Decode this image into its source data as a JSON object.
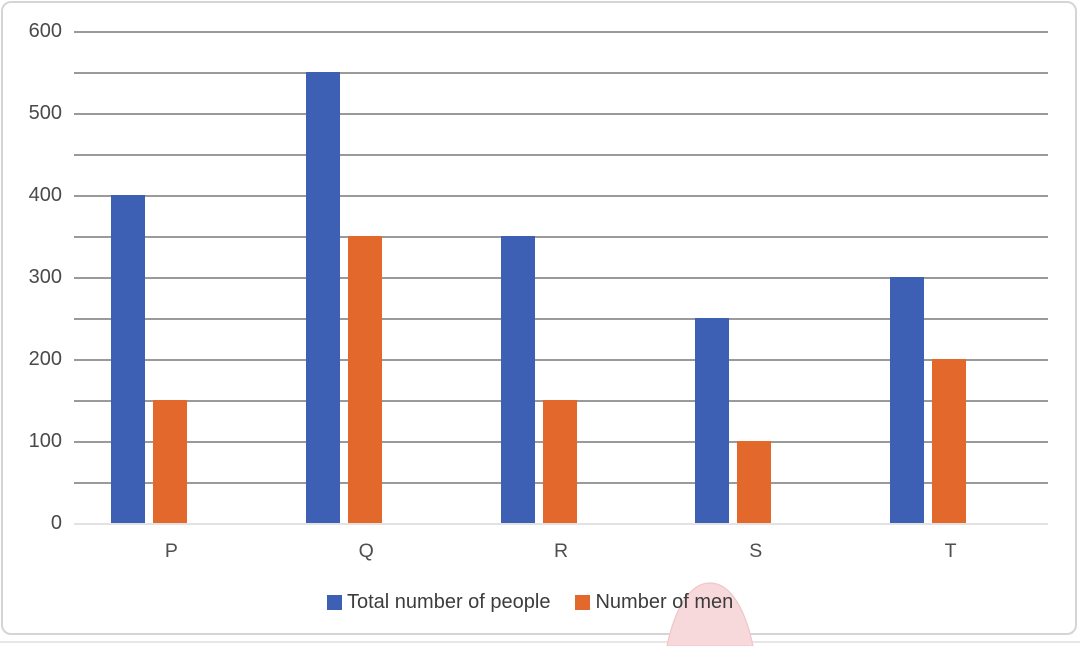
{
  "chart_data": {
    "type": "bar",
    "title": "",
    "xlabel": "",
    "ylabel": "",
    "categories": [
      "P",
      "Q",
      "R",
      "S",
      "T"
    ],
    "series": [
      {
        "name": "Total number of people",
        "color": "#3d60b5",
        "values": [
          400,
          550,
          350,
          250,
          300
        ]
      },
      {
        "name": "Number of men",
        "color": "#e2692b",
        "values": [
          150,
          350,
          150,
          100,
          200
        ]
      }
    ],
    "ylim": [
      0,
      600
    ],
    "y_major_tick_interval": 100,
    "gridline_interval": 50,
    "y_tick_labels": [
      "600",
      "500",
      "400",
      "300",
      "200",
      "100",
      "0"
    ],
    "grid": true,
    "legend_position": "bottom-center",
    "colors": {
      "gridline": "#9a9a9a",
      "zero_axis_line": "#e2e2e2",
      "axis_text": "#4a4a4a",
      "legend_text": "#3c3c3c",
      "chart_border": "#d5d5d5",
      "background": "#ffffff"
    }
  },
  "decoration": {
    "pink_touch_marker": {
      "fill": "#f7d8db",
      "stroke": "#efc6cb"
    }
  }
}
